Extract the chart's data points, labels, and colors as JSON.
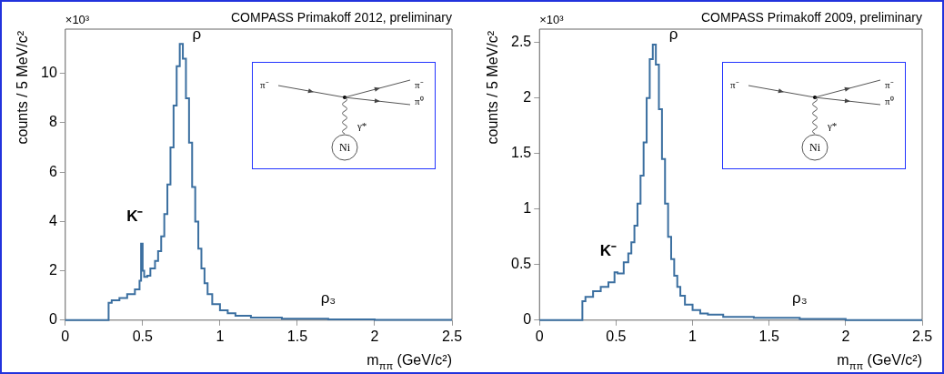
{
  "chart_data": [
    {
      "type": "step",
      "title": "COMPASS Primakoff 2012, preliminary",
      "xlabel": "m$_{ππ}$ (GeV/c²)",
      "ylabel": "counts / 5 MeV/c²",
      "color": "#3b6fa0",
      "x": [
        0,
        0.28,
        0.3,
        0.35,
        0.4,
        0.45,
        0.48,
        0.49,
        0.5,
        0.51,
        0.53,
        0.55,
        0.58,
        0.6,
        0.62,
        0.64,
        0.66,
        0.68,
        0.7,
        0.72,
        0.74,
        0.76,
        0.78,
        0.8,
        0.82,
        0.84,
        0.86,
        0.88,
        0.9,
        0.92,
        0.95,
        1.0,
        1.05,
        1.1,
        1.2,
        1.4,
        1.7,
        2.0,
        2.5
      ],
      "values": [
        0,
        0.7,
        0.8,
        0.9,
        1.05,
        1.25,
        1.6,
        3.1,
        2.0,
        1.75,
        1.8,
        2.1,
        2.4,
        2.8,
        3.4,
        4.3,
        5.5,
        7.0,
        8.7,
        10.3,
        11.2,
        10.6,
        9.0,
        7.2,
        5.4,
        4.0,
        2.9,
        2.1,
        1.5,
        1.05,
        0.65,
        0.4,
        0.28,
        0.18,
        0.1,
        0.06,
        0.03,
        0.01,
        0.01
      ],
      "xlim": [
        0,
        2.5
      ],
      "xticks": [
        0,
        0.5,
        1,
        1.5,
        2,
        2.5
      ],
      "ylim": [
        0,
        11.8
      ],
      "yticks": [
        0,
        2,
        4,
        6,
        8,
        10
      ],
      "grid": false,
      "legend": false,
      "annotations": [
        "×10³",
        "ρ",
        "K⁻",
        "ρ₃",
        "π⁻",
        "π⁻",
        "π⁰",
        "γ*",
        "Ni"
      ]
    },
    {
      "type": "step",
      "title": "COMPASS Primakoff 2009, preliminary",
      "xlabel": "m$_{ππ}$ (GeV/c²)",
      "ylabel": "counts / 5 MeV/c²",
      "color": "#3b6fa0",
      "x": [
        0,
        0.28,
        0.3,
        0.35,
        0.4,
        0.45,
        0.49,
        0.51,
        0.55,
        0.58,
        0.6,
        0.62,
        0.64,
        0.66,
        0.68,
        0.7,
        0.72,
        0.74,
        0.76,
        0.78,
        0.8,
        0.82,
        0.84,
        0.86,
        0.88,
        0.9,
        0.92,
        0.95,
        1.0,
        1.05,
        1.1,
        1.2,
        1.4,
        1.7,
        2.0,
        2.5
      ],
      "values": [
        0,
        0.17,
        0.21,
        0.26,
        0.3,
        0.34,
        0.43,
        0.42,
        0.52,
        0.6,
        0.7,
        0.85,
        1.05,
        1.3,
        1.6,
        2.0,
        2.35,
        2.48,
        2.3,
        1.9,
        1.45,
        1.05,
        0.75,
        0.55,
        0.4,
        0.3,
        0.22,
        0.14,
        0.09,
        0.06,
        0.05,
        0.03,
        0.02,
        0.01,
        0,
        0
      ],
      "xlim": [
        0,
        2.5
      ],
      "xticks": [
        0,
        0.5,
        1,
        1.5,
        2,
        2.5
      ],
      "ylim": [
        0,
        2.62
      ],
      "yticks": [
        0,
        0.5,
        1,
        1.5,
        2,
        2.5
      ],
      "grid": false,
      "legend": false,
      "annotations": [
        "×10³",
        "ρ",
        "K⁻",
        "ρ₃",
        "π⁻",
        "π⁻",
        "π⁰",
        "γ*",
        "Ni"
      ]
    }
  ]
}
